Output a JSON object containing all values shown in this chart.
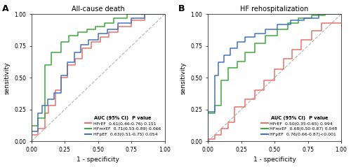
{
  "panel_A_title": "All-cause death",
  "panel_B_title": "HF rehospitalization",
  "xlabel": "1 - specificity",
  "ylabel": "sensitivity",
  "colors": {
    "HFrEF": "#E8736B",
    "HFmrEF": "#3DAA3D",
    "HFpEF": "#4472C4"
  },
  "panel_A_legend_title": "AUC (95% CI) P value",
  "panel_B_legend_title": "AUC (95% CI) P value",
  "panel_A_legend": [
    {
      "label": "HFrEF",
      "text": "0.61(0.46-0.76) 0.151"
    },
    {
      "label": "HFmrEF",
      "text": "0.71(0.53-0.89) 0.066"
    },
    {
      "label": "HFpEF",
      "text": "0.63(0.51-0.75) 0.054"
    }
  ],
  "panel_B_legend": [
    {
      "label": "HFrEF",
      "text": "0.50(0.35-0.65) 0.994"
    },
    {
      "label": "HFmrEF",
      "text": "0.68(0.50-0.87) 0.048"
    },
    {
      "label": "HFpEF",
      "text": "0.76(0.66-0.87)<0.001"
    }
  ],
  "panel_A_curves": {
    "HFrEF": {
      "fpr": [
        0.0,
        0.0,
        0.05,
        0.05,
        0.1,
        0.1,
        0.13,
        0.13,
        0.18,
        0.18,
        0.22,
        0.22,
        0.27,
        0.27,
        0.33,
        0.33,
        0.38,
        0.38,
        0.45,
        0.45,
        0.52,
        0.52,
        0.58,
        0.58,
        0.65,
        0.65,
        0.75,
        0.75,
        0.85,
        0.85,
        1.0
      ],
      "tpr": [
        0.0,
        0.05,
        0.05,
        0.1,
        0.1,
        0.22,
        0.22,
        0.28,
        0.28,
        0.4,
        0.4,
        0.5,
        0.5,
        0.6,
        0.6,
        0.65,
        0.65,
        0.73,
        0.73,
        0.78,
        0.78,
        0.82,
        0.82,
        0.86,
        0.86,
        0.9,
        0.9,
        0.95,
        0.95,
        1.0,
        1.0
      ]
    },
    "HFmrEF": {
      "fpr": [
        0.0,
        0.0,
        0.05,
        0.05,
        0.1,
        0.1,
        0.15,
        0.15,
        0.22,
        0.22,
        0.28,
        0.28,
        0.35,
        0.35,
        0.42,
        0.42,
        0.48,
        0.48,
        0.55,
        0.55,
        0.62,
        0.62,
        0.72,
        0.72,
        0.82,
        0.82,
        1.0
      ],
      "tpr": [
        0.0,
        0.12,
        0.12,
        0.18,
        0.18,
        0.6,
        0.6,
        0.7,
        0.7,
        0.78,
        0.78,
        0.83,
        0.83,
        0.86,
        0.86,
        0.88,
        0.88,
        0.9,
        0.9,
        0.93,
        0.93,
        0.97,
        0.97,
        1.0,
        1.0,
        1.0,
        1.0
      ]
    },
    "HFpEF": {
      "fpr": [
        0.0,
        0.0,
        0.05,
        0.05,
        0.08,
        0.08,
        0.12,
        0.12,
        0.17,
        0.17,
        0.22,
        0.22,
        0.27,
        0.27,
        0.32,
        0.32,
        0.37,
        0.37,
        0.43,
        0.43,
        0.5,
        0.5,
        0.57,
        0.57,
        0.65,
        0.65,
        0.75,
        0.75,
        0.85,
        0.85,
        1.0
      ],
      "tpr": [
        0.0,
        0.08,
        0.08,
        0.22,
        0.22,
        0.28,
        0.28,
        0.33,
        0.33,
        0.38,
        0.38,
        0.52,
        0.52,
        0.62,
        0.62,
        0.7,
        0.7,
        0.76,
        0.76,
        0.8,
        0.8,
        0.85,
        0.85,
        0.88,
        0.88,
        0.93,
        0.93,
        0.97,
        0.97,
        1.0,
        1.0
      ]
    }
  },
  "panel_B_curves": {
    "HFrEF": {
      "fpr": [
        0.0,
        0.0,
        0.05,
        0.05,
        0.1,
        0.1,
        0.15,
        0.15,
        0.2,
        0.2,
        0.28,
        0.28,
        0.35,
        0.35,
        0.42,
        0.42,
        0.5,
        0.5,
        0.57,
        0.57,
        0.63,
        0.63,
        0.7,
        0.7,
        0.78,
        0.78,
        0.85,
        0.85,
        1.0
      ],
      "tpr": [
        0.0,
        0.02,
        0.02,
        0.05,
        0.05,
        0.1,
        0.1,
        0.15,
        0.15,
        0.27,
        0.27,
        0.33,
        0.33,
        0.4,
        0.4,
        0.48,
        0.48,
        0.57,
        0.57,
        0.65,
        0.65,
        0.72,
        0.72,
        0.8,
        0.8,
        0.87,
        0.87,
        0.93,
        0.93
      ]
    },
    "HFmrEF": {
      "fpr": [
        0.0,
        0.0,
        0.05,
        0.05,
        0.1,
        0.1,
        0.15,
        0.15,
        0.22,
        0.22,
        0.28,
        0.28,
        0.35,
        0.35,
        0.43,
        0.43,
        0.52,
        0.52,
        0.6,
        0.6,
        0.68,
        0.68,
        0.78,
        0.78,
        0.88,
        0.88,
        1.0
      ],
      "tpr": [
        0.0,
        0.22,
        0.22,
        0.28,
        0.28,
        0.48,
        0.48,
        0.58,
        0.58,
        0.63,
        0.63,
        0.7,
        0.7,
        0.77,
        0.77,
        0.83,
        0.83,
        0.88,
        0.88,
        0.93,
        0.93,
        0.97,
        0.97,
        0.99,
        0.99,
        1.0,
        1.0
      ]
    },
    "HFpEF": {
      "fpr": [
        0.0,
        0.0,
        0.05,
        0.05,
        0.08,
        0.08,
        0.12,
        0.12,
        0.17,
        0.17,
        0.22,
        0.22,
        0.28,
        0.28,
        0.35,
        0.35,
        0.43,
        0.43,
        0.52,
        0.52,
        0.62,
        0.62,
        0.72,
        0.72,
        0.83,
        0.83,
        1.0
      ],
      "tpr": [
        0.0,
        0.23,
        0.23,
        0.52,
        0.52,
        0.62,
        0.62,
        0.68,
        0.68,
        0.73,
        0.73,
        0.78,
        0.78,
        0.82,
        0.82,
        0.85,
        0.85,
        0.88,
        0.88,
        0.92,
        0.92,
        0.95,
        0.95,
        0.97,
        0.97,
        1.0,
        1.0
      ]
    }
  },
  "background_color": "#FFFFFF",
  "tick_labels": [
    "0.00",
    "0.25",
    "0.50",
    "0.75",
    "1.00"
  ]
}
